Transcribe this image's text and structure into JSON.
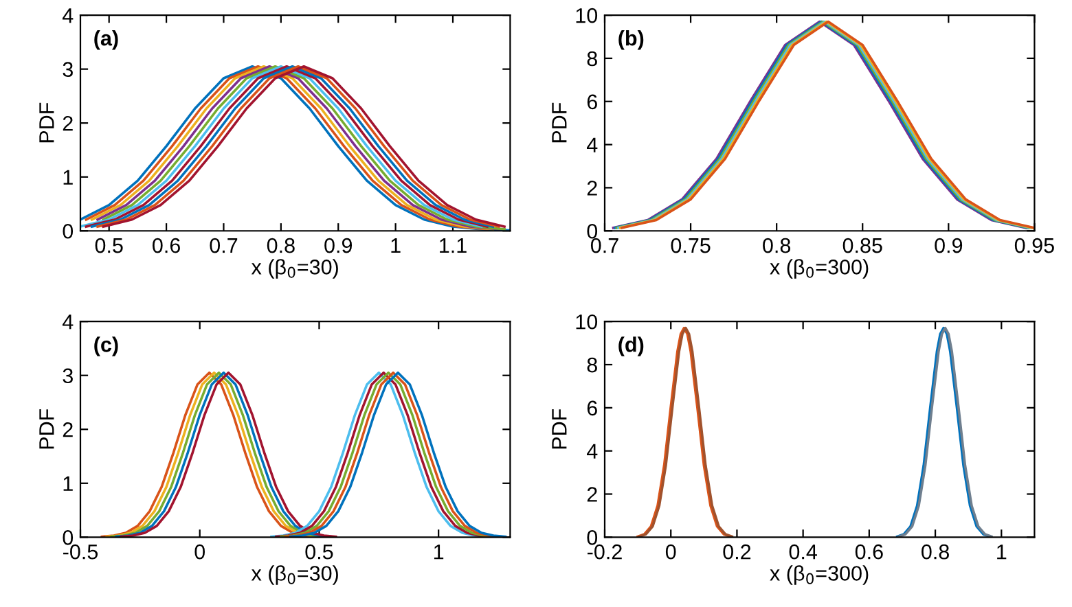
{
  "chart_data": [
    {
      "type": "line",
      "annotations": [
        "(a)"
      ],
      "xlabel": "x (β$_{0}$=30)",
      "ylabel": "PDF",
      "xlim": [
        0.45,
        1.2
      ],
      "xticks": [
        0.5,
        0.6,
        0.7,
        0.8,
        0.9,
        1,
        1.1
      ],
      "ylim": [
        0,
        4
      ],
      "yticks": [
        0,
        1,
        2,
        3,
        4
      ],
      "grid": false,
      "series": [
        {
          "color": "#0072bd",
          "x": [
            0.45,
            0.5,
            0.55,
            0.6,
            0.65,
            0.7,
            0.75,
            0.8,
            0.85,
            0.9,
            0.95,
            1.0,
            1.05,
            1.1,
            1.15,
            1.2
          ],
          "values": [
            0.21,
            0.48,
            0.93,
            1.57,
            2.27,
            2.83,
            3.05,
            2.83,
            2.27,
            1.57,
            0.93,
            0.48,
            0.21,
            0.08,
            0.03,
            0.01
          ]
        },
        {
          "color": "#d95319",
          "x": [
            0.46,
            0.51,
            0.56,
            0.61,
            0.66,
            0.71,
            0.76,
            0.81,
            0.86,
            0.91,
            0.96,
            1.01,
            1.06,
            1.11,
            1.16
          ],
          "values": [
            0.21,
            0.48,
            0.93,
            1.57,
            2.27,
            2.83,
            3.05,
            2.83,
            2.27,
            1.57,
            0.93,
            0.48,
            0.21,
            0.08,
            0.03
          ]
        },
        {
          "color": "#edb120",
          "x": [
            0.47,
            0.52,
            0.57,
            0.62,
            0.67,
            0.72,
            0.77,
            0.82,
            0.87,
            0.92,
            0.97,
            1.02,
            1.07,
            1.12,
            1.17
          ],
          "values": [
            0.21,
            0.48,
            0.93,
            1.57,
            2.27,
            2.83,
            3.05,
            2.83,
            2.27,
            1.57,
            0.93,
            0.48,
            0.21,
            0.08,
            0.03
          ]
        },
        {
          "color": "#7e2f8e",
          "x": [
            0.48,
            0.53,
            0.58,
            0.63,
            0.68,
            0.73,
            0.78,
            0.83,
            0.88,
            0.93,
            0.98,
            1.03,
            1.08,
            1.13,
            1.18
          ],
          "values": [
            0.21,
            0.48,
            0.93,
            1.57,
            2.27,
            2.83,
            3.05,
            2.83,
            2.27,
            1.57,
            0.93,
            0.48,
            0.21,
            0.08,
            0.03
          ]
        },
        {
          "color": "#77ac30",
          "x": [
            0.49,
            0.54,
            0.59,
            0.64,
            0.69,
            0.74,
            0.79,
            0.84,
            0.89,
            0.94,
            0.99,
            1.04,
            1.09,
            1.14,
            1.19
          ],
          "values": [
            0.21,
            0.48,
            0.93,
            1.57,
            2.27,
            2.83,
            3.05,
            2.83,
            2.27,
            1.57,
            0.93,
            0.48,
            0.21,
            0.08,
            0.03
          ]
        },
        {
          "color": "#4dbeee",
          "x": [
            0.45,
            0.5,
            0.55,
            0.6,
            0.65,
            0.7,
            0.75,
            0.8,
            0.85,
            0.9,
            0.95,
            1.0,
            1.05,
            1.1,
            1.15
          ],
          "values": [
            0.08,
            0.21,
            0.48,
            0.93,
            1.57,
            2.27,
            2.83,
            3.05,
            2.83,
            2.27,
            1.57,
            0.93,
            0.48,
            0.21,
            0.08
          ]
        },
        {
          "color": "#a2142f",
          "x": [
            0.46,
            0.51,
            0.56,
            0.61,
            0.66,
            0.71,
            0.76,
            0.81,
            0.86,
            0.91,
            0.96,
            1.01,
            1.06,
            1.11,
            1.16
          ],
          "values": [
            0.08,
            0.21,
            0.48,
            0.93,
            1.57,
            2.27,
            2.83,
            3.05,
            2.83,
            2.27,
            1.57,
            0.93,
            0.48,
            0.21,
            0.08
          ]
        },
        {
          "color": "#0072bd",
          "x": [
            0.47,
            0.52,
            0.57,
            0.62,
            0.67,
            0.72,
            0.77,
            0.82,
            0.87,
            0.92,
            0.97,
            1.02,
            1.07,
            1.12,
            1.17
          ],
          "values": [
            0.08,
            0.21,
            0.48,
            0.93,
            1.57,
            2.27,
            2.83,
            3.05,
            2.83,
            2.27,
            1.57,
            0.93,
            0.48,
            0.21,
            0.08
          ]
        },
        {
          "color": "#d95319",
          "x": [
            0.48,
            0.53,
            0.58,
            0.63,
            0.68,
            0.73,
            0.78,
            0.83,
            0.88,
            0.93,
            0.98,
            1.03,
            1.08,
            1.13,
            1.18
          ],
          "values": [
            0.08,
            0.21,
            0.48,
            0.93,
            1.57,
            2.27,
            2.83,
            3.05,
            2.83,
            2.27,
            1.57,
            0.93,
            0.48,
            0.21,
            0.08
          ]
        },
        {
          "color": "#a2142f",
          "x": [
            0.49,
            0.54,
            0.59,
            0.64,
            0.69,
            0.74,
            0.79,
            0.84,
            0.89,
            0.94,
            0.99,
            1.04,
            1.09,
            1.14,
            1.19
          ],
          "values": [
            0.08,
            0.21,
            0.48,
            0.93,
            1.57,
            2.27,
            2.83,
            3.05,
            2.83,
            2.27,
            1.57,
            0.93,
            0.48,
            0.21,
            0.08
          ]
        }
      ]
    },
    {
      "type": "line",
      "annotations": [
        "(b)"
      ],
      "xlabel": "x (β$_{0}$=300)",
      "ylabel": "PDF",
      "xlim": [
        0.7,
        0.95
      ],
      "xticks": [
        0.7,
        0.75,
        0.8,
        0.85,
        0.9,
        0.95
      ],
      "ylim": [
        0,
        10
      ],
      "yticks": [
        0,
        2,
        4,
        6,
        8,
        10
      ],
      "grid": false,
      "series": [
        {
          "color": "#7e2f8e",
          "x": [
            0.705,
            0.725,
            0.745,
            0.765,
            0.785,
            0.805,
            0.825,
            0.845,
            0.865,
            0.885,
            0.905,
            0.925,
            0.945
          ],
          "values": [
            0.14,
            0.5,
            1.46,
            3.34,
            6.05,
            8.62,
            9.7,
            8.62,
            6.05,
            3.34,
            1.46,
            0.5,
            0.14
          ]
        },
        {
          "color": "#0072bd",
          "x": [
            0.706,
            0.726,
            0.746,
            0.766,
            0.786,
            0.806,
            0.826,
            0.846,
            0.866,
            0.886,
            0.906,
            0.926,
            0.946
          ],
          "values": [
            0.14,
            0.5,
            1.46,
            3.34,
            6.05,
            8.62,
            9.7,
            8.62,
            6.05,
            3.34,
            1.46,
            0.5,
            0.14
          ]
        },
        {
          "color": "#77ac30",
          "x": [
            0.707,
            0.727,
            0.747,
            0.767,
            0.787,
            0.807,
            0.827,
            0.847,
            0.867,
            0.887,
            0.907,
            0.927,
            0.947
          ],
          "values": [
            0.14,
            0.5,
            1.46,
            3.34,
            6.05,
            8.62,
            9.7,
            8.62,
            6.05,
            3.34,
            1.46,
            0.5,
            0.14
          ]
        },
        {
          "color": "#4dbeee",
          "x": [
            0.708,
            0.728,
            0.748,
            0.768,
            0.788,
            0.808,
            0.828,
            0.848,
            0.868,
            0.888,
            0.908,
            0.928,
            0.948
          ],
          "values": [
            0.14,
            0.5,
            1.46,
            3.34,
            6.05,
            8.62,
            9.7,
            8.62,
            6.05,
            3.34,
            1.46,
            0.5,
            0.14
          ]
        },
        {
          "color": "#edb120",
          "x": [
            0.709,
            0.729,
            0.749,
            0.769,
            0.789,
            0.809,
            0.829,
            0.849,
            0.869,
            0.889,
            0.909,
            0.929,
            0.949
          ],
          "values": [
            0.14,
            0.5,
            1.46,
            3.34,
            6.05,
            8.62,
            9.7,
            8.62,
            6.05,
            3.34,
            1.46,
            0.5,
            0.14
          ]
        },
        {
          "color": "#d95319",
          "x": [
            0.71,
            0.73,
            0.75,
            0.77,
            0.79,
            0.81,
            0.83,
            0.85,
            0.87,
            0.89,
            0.91,
            0.93,
            0.95
          ],
          "values": [
            0.14,
            0.5,
            1.46,
            3.34,
            6.05,
            8.62,
            9.7,
            8.62,
            6.05,
            3.34,
            1.46,
            0.5,
            0.14
          ]
        }
      ]
    },
    {
      "type": "line",
      "annotations": [
        "(c)"
      ],
      "xlabel": "x (β$_{0}$=30)",
      "ylabel": "PDF",
      "xlim": [
        -0.5,
        1.3
      ],
      "xticks": [
        -0.5,
        0,
        0.5,
        1
      ],
      "ylim": [
        0,
        4
      ],
      "yticks": [
        0,
        1,
        2,
        3,
        4
      ],
      "grid": false,
      "series": [
        {
          "color": "#d95319",
          "x": [
            -0.41,
            -0.36,
            -0.31,
            -0.26,
            -0.21,
            -0.16,
            -0.11,
            -0.06,
            -0.01,
            0.04,
            0.09,
            0.14,
            0.19,
            0.24,
            0.29,
            0.34,
            0.39,
            0.44,
            0.49
          ],
          "values": [
            0.01,
            0.03,
            0.08,
            0.21,
            0.48,
            0.93,
            1.57,
            2.27,
            2.83,
            3.05,
            2.83,
            2.27,
            1.57,
            0.93,
            0.48,
            0.21,
            0.08,
            0.03,
            0.01
          ]
        },
        {
          "color": "#edb120",
          "x": [
            -0.39,
            -0.34,
            -0.29,
            -0.24,
            -0.19,
            -0.14,
            -0.09,
            -0.04,
            0.01,
            0.06,
            0.11,
            0.16,
            0.21,
            0.26,
            0.31,
            0.36,
            0.41,
            0.46,
            0.51
          ],
          "values": [
            0.01,
            0.03,
            0.08,
            0.21,
            0.48,
            0.93,
            1.57,
            2.27,
            2.83,
            3.05,
            2.83,
            2.27,
            1.57,
            0.93,
            0.48,
            0.21,
            0.08,
            0.03,
            0.01
          ]
        },
        {
          "color": "#77ac30",
          "x": [
            -0.37,
            -0.32,
            -0.27,
            -0.22,
            -0.17,
            -0.12,
            -0.07,
            -0.02,
            0.03,
            0.08,
            0.13,
            0.18,
            0.23,
            0.28,
            0.33,
            0.38,
            0.43,
            0.48,
            0.53
          ],
          "values": [
            0.01,
            0.03,
            0.08,
            0.21,
            0.48,
            0.93,
            1.57,
            2.27,
            2.83,
            3.05,
            2.83,
            2.27,
            1.57,
            0.93,
            0.48,
            0.21,
            0.08,
            0.03,
            0.01
          ]
        },
        {
          "color": "#0072bd",
          "x": [
            -0.35,
            -0.3,
            -0.25,
            -0.2,
            -0.15,
            -0.1,
            -0.05,
            0,
            0.05,
            0.1,
            0.15,
            0.2,
            0.25,
            0.3,
            0.35,
            0.4,
            0.45,
            0.5,
            0.55
          ],
          "values": [
            0.01,
            0.03,
            0.08,
            0.21,
            0.48,
            0.93,
            1.57,
            2.27,
            2.83,
            3.05,
            2.83,
            2.27,
            1.57,
            0.93,
            0.48,
            0.21,
            0.08,
            0.03,
            0.01
          ]
        },
        {
          "color": "#a2142f",
          "x": [
            -0.33,
            -0.28,
            -0.23,
            -0.18,
            -0.13,
            -0.08,
            -0.03,
            0.02,
            0.07,
            0.12,
            0.17,
            0.22,
            0.27,
            0.32,
            0.37,
            0.42,
            0.47,
            0.52,
            0.57
          ],
          "values": [
            0.01,
            0.03,
            0.08,
            0.21,
            0.48,
            0.93,
            1.57,
            2.27,
            2.83,
            3.05,
            2.83,
            2.27,
            1.57,
            0.93,
            0.48,
            0.21,
            0.08,
            0.03,
            0.01
          ]
        },
        {
          "color": "#4dbeee",
          "x": [
            0.3,
            0.35,
            0.4,
            0.45,
            0.5,
            0.55,
            0.6,
            0.65,
            0.7,
            0.75,
            0.8,
            0.85,
            0.9,
            0.95,
            1.0,
            1.05,
            1.1,
            1.15,
            1.2
          ],
          "values": [
            0.01,
            0.03,
            0.08,
            0.21,
            0.48,
            0.93,
            1.57,
            2.27,
            2.83,
            3.05,
            2.83,
            2.27,
            1.57,
            0.93,
            0.48,
            0.21,
            0.08,
            0.03,
            0.01
          ]
        },
        {
          "color": "#a2142f",
          "x": [
            0.32,
            0.37,
            0.42,
            0.47,
            0.52,
            0.57,
            0.62,
            0.67,
            0.72,
            0.77,
            0.82,
            0.87,
            0.92,
            0.97,
            1.02,
            1.07,
            1.12,
            1.17,
            1.22
          ],
          "values": [
            0.01,
            0.03,
            0.08,
            0.21,
            0.48,
            0.93,
            1.57,
            2.27,
            2.83,
            3.05,
            2.83,
            2.27,
            1.57,
            0.93,
            0.48,
            0.21,
            0.08,
            0.03,
            0.01
          ]
        },
        {
          "color": "#77ac30",
          "x": [
            0.34,
            0.39,
            0.44,
            0.49,
            0.54,
            0.59,
            0.64,
            0.69,
            0.74,
            0.79,
            0.84,
            0.89,
            0.94,
            0.99,
            1.04,
            1.09,
            1.14,
            1.19,
            1.24
          ],
          "values": [
            0.01,
            0.03,
            0.08,
            0.21,
            0.48,
            0.93,
            1.57,
            2.27,
            2.83,
            3.05,
            2.83,
            2.27,
            1.57,
            0.93,
            0.48,
            0.21,
            0.08,
            0.03,
            0.01
          ]
        },
        {
          "color": "#d95319",
          "x": [
            0.36,
            0.41,
            0.46,
            0.51,
            0.56,
            0.61,
            0.66,
            0.71,
            0.76,
            0.81,
            0.86,
            0.91,
            0.96,
            1.01,
            1.06,
            1.11,
            1.16,
            1.21,
            1.26
          ],
          "values": [
            0.01,
            0.03,
            0.08,
            0.21,
            0.48,
            0.93,
            1.57,
            2.27,
            2.83,
            3.05,
            2.83,
            2.27,
            1.57,
            0.93,
            0.48,
            0.21,
            0.08,
            0.03,
            0.01
          ]
        },
        {
          "color": "#0072bd",
          "x": [
            0.38,
            0.43,
            0.48,
            0.53,
            0.58,
            0.63,
            0.68,
            0.73,
            0.78,
            0.83,
            0.88,
            0.93,
            0.98,
            1.03,
            1.08,
            1.13,
            1.18,
            1.23,
            1.28
          ],
          "values": [
            0.01,
            0.03,
            0.08,
            0.21,
            0.48,
            0.93,
            1.57,
            2.27,
            2.83,
            3.05,
            2.83,
            2.27,
            1.57,
            0.93,
            0.48,
            0.21,
            0.08,
            0.03,
            0.01
          ]
        }
      ]
    },
    {
      "type": "line",
      "annotations": [
        "(d)"
      ],
      "xlabel": "x (β$_{0}$=300)",
      "ylabel": "PDF",
      "xlim": [
        -0.2,
        1.1
      ],
      "xticks": [
        -0.2,
        0,
        0.2,
        0.4,
        0.6,
        0.8,
        1
      ],
      "ylim": [
        0,
        10
      ],
      "yticks": [
        0,
        2,
        4,
        6,
        8,
        10
      ],
      "grid": false,
      "series": [
        {
          "color": "#0072bd",
          "x": [
            0.685,
            0.705,
            0.725,
            0.745,
            0.765,
            0.785,
            0.805,
            0.815,
            0.825,
            0.835,
            0.845,
            0.865,
            0.885,
            0.905,
            0.925,
            0.945,
            0.965
          ],
          "values": [
            0.03,
            0.14,
            0.5,
            1.46,
            3.34,
            6.05,
            8.62,
            9.42,
            9.7,
            9.42,
            8.62,
            6.05,
            3.34,
            1.46,
            0.5,
            0.14,
            0.03
          ]
        },
        {
          "color": "#6f7f8f",
          "x": [
            0.69,
            0.71,
            0.73,
            0.75,
            0.77,
            0.79,
            0.81,
            0.82,
            0.83,
            0.84,
            0.85,
            0.87,
            0.89,
            0.91,
            0.93,
            0.95,
            0.97
          ],
          "values": [
            0.03,
            0.14,
            0.5,
            1.46,
            3.34,
            6.05,
            8.62,
            9.42,
            9.7,
            9.42,
            8.62,
            6.05,
            3.34,
            1.46,
            0.5,
            0.14,
            0.03
          ]
        },
        {
          "color": "#d95319",
          "x": [
            -0.1,
            -0.08,
            -0.06,
            -0.04,
            -0.02,
            0,
            0.02,
            0.03,
            0.04,
            0.05,
            0.06,
            0.08,
            0.1,
            0.12,
            0.14,
            0.16,
            0.18
          ],
          "values": [
            0.03,
            0.14,
            0.5,
            1.46,
            3.34,
            6.05,
            8.62,
            9.42,
            9.7,
            9.42,
            8.62,
            6.05,
            3.34,
            1.46,
            0.5,
            0.14,
            0.03
          ]
        },
        {
          "color": "#a0522d",
          "x": [
            -0.095,
            -0.075,
            -0.055,
            -0.035,
            -0.015,
            0.005,
            0.025,
            0.035,
            0.045,
            0.055,
            0.065,
            0.085,
            0.105,
            0.125,
            0.145,
            0.165,
            0.185
          ],
          "values": [
            0.03,
            0.14,
            0.5,
            1.46,
            3.34,
            6.05,
            8.62,
            9.42,
            9.7,
            9.42,
            8.62,
            6.05,
            3.34,
            1.46,
            0.5,
            0.14,
            0.03
          ]
        }
      ]
    }
  ]
}
